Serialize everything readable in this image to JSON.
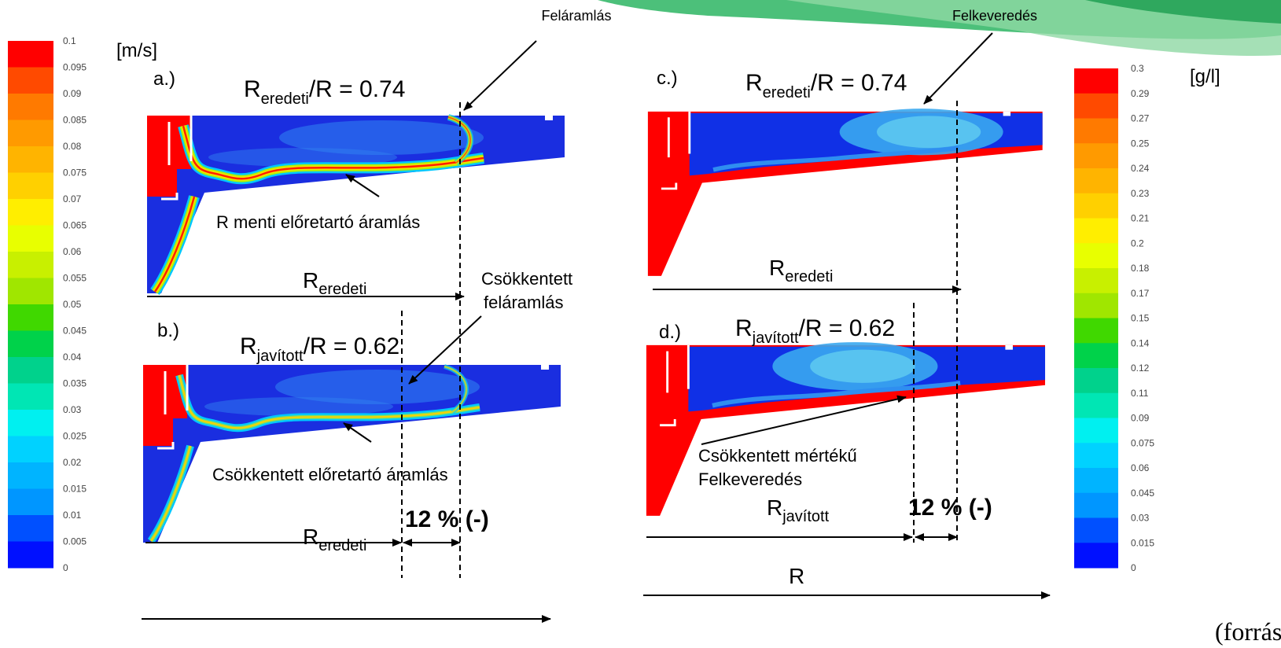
{
  "header": {
    "left_label": "Feláramlás",
    "right_label": "Felkeveredés"
  },
  "velocity_scale": {
    "unit": "[m/s]",
    "labels": [
      "0.1",
      "0.095",
      "0.09",
      "0.085",
      "0.08",
      "0.075",
      "0.07",
      "0.065",
      "0.06",
      "0.055",
      "0.05",
      "0.045",
      "0.04",
      "0.035",
      "0.03",
      "0.025",
      "0.02",
      "0.015",
      "0.01",
      "0.005",
      "0"
    ]
  },
  "concentration_scale": {
    "unit": "[g/l]",
    "labels": [
      "0.3",
      "0.29",
      "0.27",
      "0.25",
      "0.24",
      "0.23",
      "0.21",
      "0.2",
      "0.18",
      "0.17",
      "0.15",
      "0.14",
      "0.12",
      "0.11",
      "0.09",
      "0.075",
      "0.06",
      "0.045",
      "0.03",
      "0.015",
      "0"
    ]
  },
  "panels": [
    {
      "label": "a.)",
      "ratio": {
        "base": "R",
        "sub": "eredeti",
        "rest": "/R = 0.74"
      },
      "length": {
        "base": "R",
        "sub": "eredeti"
      },
      "note": "R menti előretartó áramlás"
    },
    {
      "label": "b.)",
      "ratio": {
        "base": "R",
        "sub": "javított",
        "rest": "/R = 0.62"
      },
      "length": {
        "base": "R",
        "sub": "eredeti"
      },
      "note": "Csökkentett előretartó áramlás",
      "note_top": [
        "Csökkentett",
        "feláramlás"
      ],
      "difference": "12 % (-)"
    },
    {
      "label": "c.)",
      "ratio": {
        "base": "R",
        "sub": "eredeti",
        "rest": "/R = 0.74"
      },
      "length": {
        "base": "R",
        "sub": "eredeti"
      }
    },
    {
      "label": "d.)",
      "ratio": {
        "base": "R",
        "sub": "javított",
        "rest": "/R = 0.62"
      },
      "length": {
        "base": "R",
        "sub": "javított"
      },
      "note": [
        "Csökkentett mértékű",
        "Felkeveredés"
      ],
      "difference": "12 % (-)"
    }
  ],
  "radius_label": "R",
  "source": "(forrás"
}
